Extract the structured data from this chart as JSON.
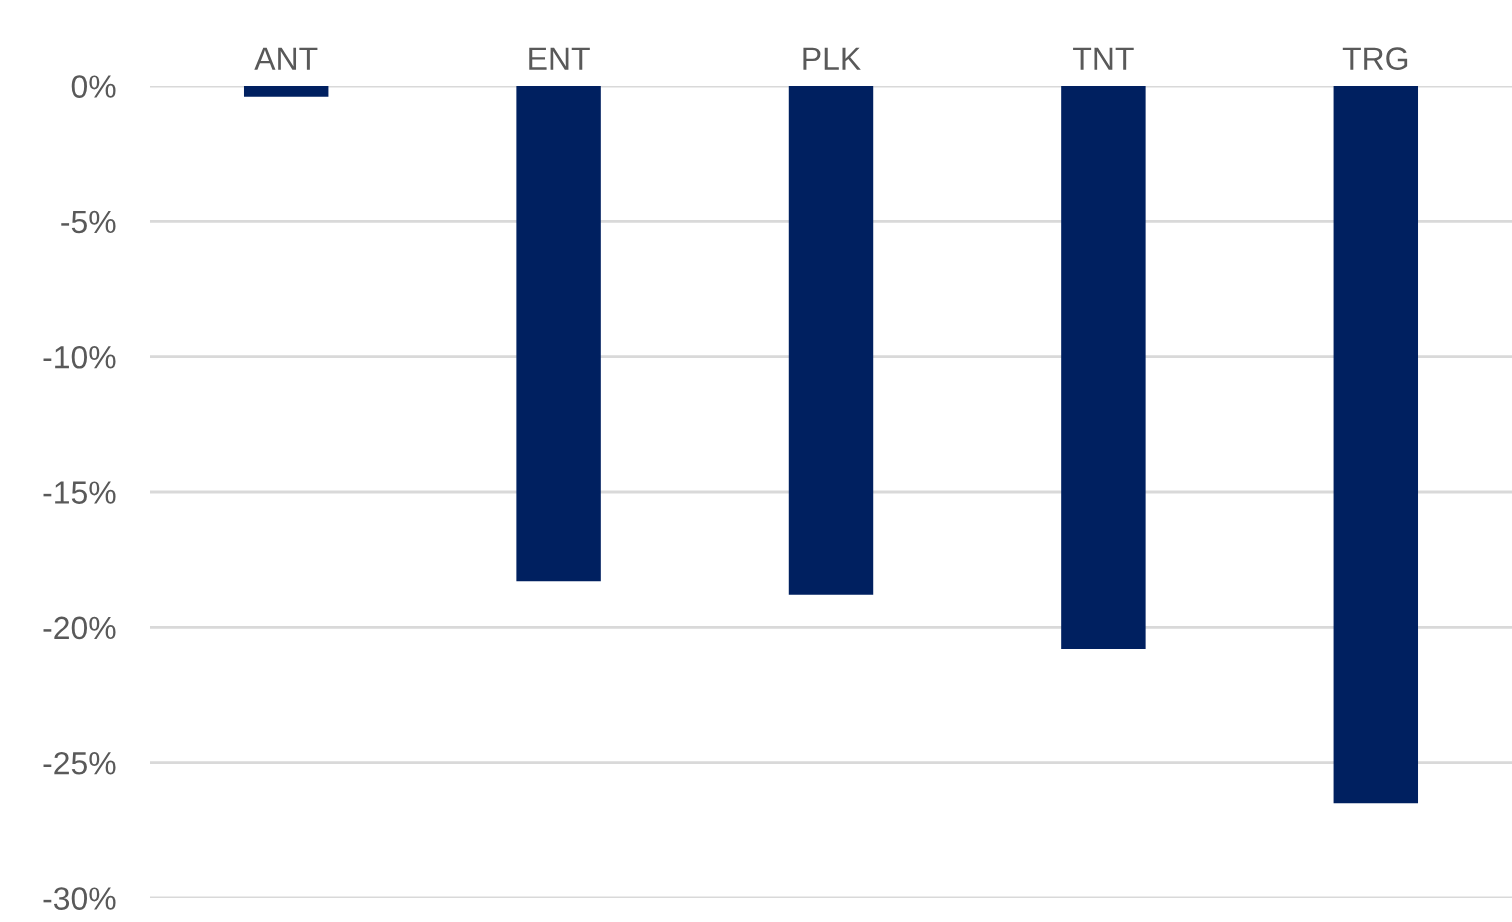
{
  "chart_data": {
    "type": "bar",
    "categories": [
      "ANT",
      "ENT",
      "PLK",
      "TNT",
      "TRG"
    ],
    "values": [
      -0.4,
      -18.3,
      -18.8,
      -20.8,
      -26.5
    ],
    "color": "#002060",
    "ylim": [
      -30,
      0
    ],
    "yticks": [
      {
        "value": 0,
        "label": "0%"
      },
      {
        "value": -5,
        "label": "-5%"
      },
      {
        "value": -10,
        "label": "-10%"
      },
      {
        "value": -15,
        "label": "-15%"
      },
      {
        "value": -20,
        "label": "-20%"
      },
      {
        "value": -25,
        "label": "-25%"
      },
      {
        "value": -30,
        "label": "-30%"
      }
    ],
    "grid": "y"
  }
}
